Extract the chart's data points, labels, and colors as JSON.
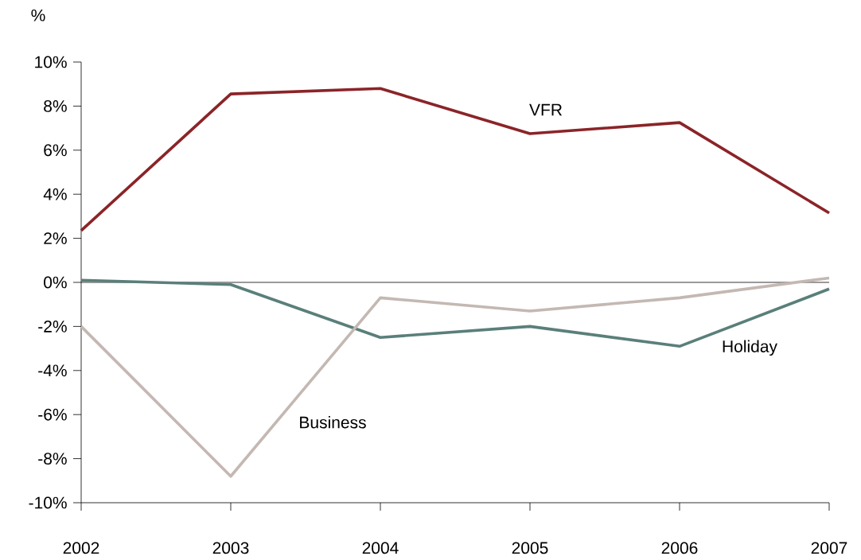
{
  "chart_data": {
    "type": "line",
    "ylabel": "%",
    "categories": [
      "2002",
      "2003",
      "2004",
      "2005",
      "2006",
      "2007"
    ],
    "ylim": [
      -10,
      10
    ],
    "yticks": [
      {
        "value": -10,
        "label": "-10%"
      },
      {
        "value": -8,
        "label": "-8%"
      },
      {
        "value": -6,
        "label": "-6%"
      },
      {
        "value": -4,
        "label": "-4%"
      },
      {
        "value": -2,
        "label": "-2%"
      },
      {
        "value": 0,
        "label": "0%"
      },
      {
        "value": 2,
        "label": "2%"
      },
      {
        "value": 4,
        "label": "4%"
      },
      {
        "value": 6,
        "label": "6%"
      },
      {
        "value": 8,
        "label": "8%"
      },
      {
        "value": 10,
        "label": "10%"
      }
    ],
    "series": [
      {
        "name": "VFR",
        "color": "#8b2428",
        "values": [
          2.35,
          8.55,
          8.8,
          6.75,
          7.25,
          3.15
        ]
      },
      {
        "name": "Holiday",
        "color": "#5a7f7a",
        "values": [
          0.1,
          -0.1,
          -2.5,
          -2.0,
          -2.9,
          -0.3
        ]
      },
      {
        "name": "Business",
        "color": "#c4b8b2",
        "values": [
          -2.0,
          -8.8,
          -0.7,
          -1.3,
          -0.7,
          0.2
        ]
      }
    ],
    "ref_lines": [
      {
        "axis": "y",
        "value": 0,
        "color": "#000000"
      }
    ],
    "marker": "none",
    "line_style": "solid",
    "legend": false,
    "grid": false
  }
}
